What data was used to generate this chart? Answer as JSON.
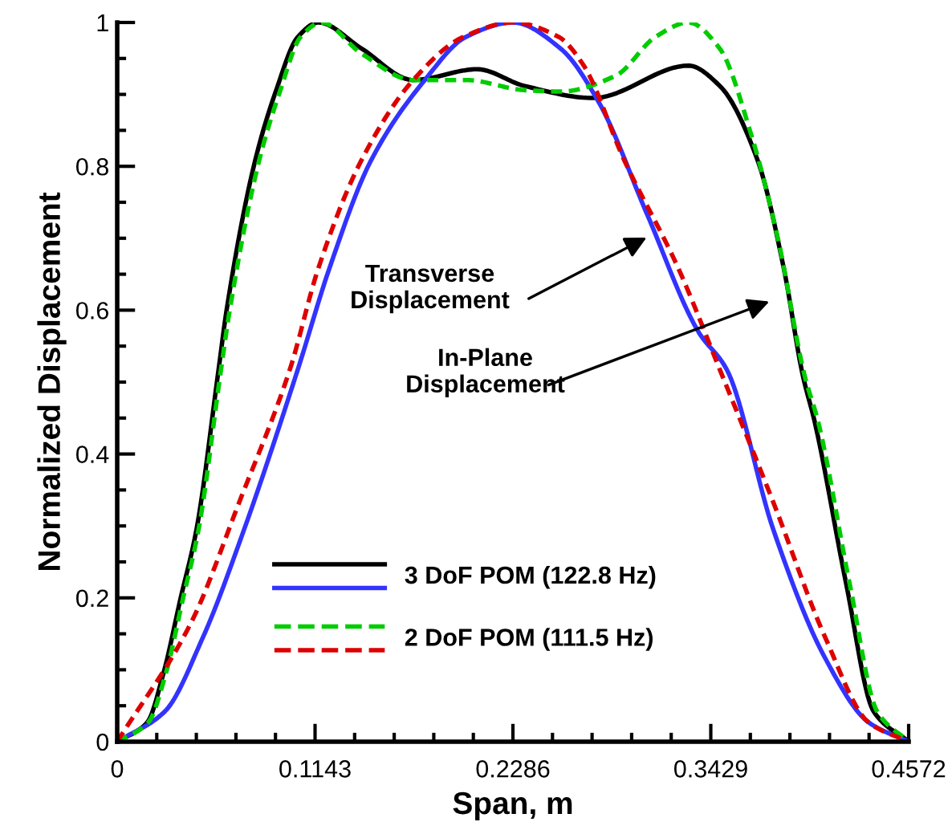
{
  "chart_data": {
    "type": "line",
    "xlabel": "Span, m",
    "ylabel": "Normalized Displacement",
    "xlim": [
      0,
      0.4572
    ],
    "ylim": [
      0,
      1
    ],
    "xticks": [
      0,
      0.1143,
      0.2286,
      0.3429,
      0.4572
    ],
    "yticks": [
      0,
      0.2,
      0.4,
      0.6,
      0.8,
      1
    ],
    "grid": false,
    "legend": "bottom",
    "marker": "none",
    "series": [
      {
        "name": "3 DoF POM (122.8 Hz)",
        "color": "#000000",
        "line_style": "solid",
        "x": [
          0,
          0.0174,
          0.0266,
          0.0366,
          0.0458,
          0.0586,
          0.0632,
          0.0797,
          0.0916,
          0.1044,
          0.1163,
          0.141,
          0.171,
          0.208,
          0.235,
          0.275,
          0.33,
          0.348,
          0.37,
          0.385,
          0.396,
          0.403,
          0.421,
          0.437,
          0.4572
        ],
        "values": [
          0,
          0.027,
          0.094,
          0.199,
          0.295,
          0.518,
          0.6,
          0.808,
          0.904,
          0.98,
          1,
          0.964,
          0.92,
          0.935,
          0.912,
          0.895,
          0.94,
          0.912,
          0.808,
          0.659,
          0.51,
          0.444,
          0.221,
          0.042,
          0
        ]
      },
      {
        "color": "#3333ff",
        "line_style": "solid",
        "x": [
          0,
          0.0275,
          0.0495,
          0.0733,
          0.1044,
          0.1227,
          0.1466,
          0.1777,
          0.2015,
          0.2286,
          0.256,
          0.278,
          0.306,
          0.336,
          0.352,
          0.379,
          0.409,
          0.434,
          0.4572
        ],
        "values": [
          0,
          0.042,
          0.145,
          0.295,
          0.518,
          0.659,
          0.808,
          0.92,
          0.98,
          1,
          0.964,
          0.89,
          0.734,
          0.569,
          0.518,
          0.295,
          0.116,
          0.027,
          0
        ]
      },
      {
        "name": "2 DoF POM (111.5 Hz)",
        "color": "#00cc00",
        "line_style": "dashed",
        "x": [
          0,
          0.018,
          0.028,
          0.038,
          0.047,
          0.06,
          0.065,
          0.082,
          0.094,
          0.106,
          0.118,
          0.141,
          0.171,
          0.2015,
          0.235,
          0.256,
          0.288,
          0.311,
          0.33,
          0.348,
          0.366,
          0.382,
          0.397,
          0.405,
          0.423,
          0.439,
          0.4572
        ],
        "values": [
          0,
          0.027,
          0.094,
          0.199,
          0.295,
          0.518,
          0.6,
          0.808,
          0.904,
          0.98,
          1,
          0.957,
          0.92,
          0.92,
          0.906,
          0.904,
          0.926,
          0.98,
          1,
          0.964,
          0.846,
          0.696,
          0.51,
          0.444,
          0.221,
          0.042,
          0
        ]
      },
      {
        "color": "#dd0000",
        "line_style": "dashed",
        "x": [
          0,
          0.043,
          0.0705,
          0.0998,
          0.1163,
          0.141,
          0.171,
          0.2,
          0.2286,
          0.255,
          0.269,
          0.293,
          0.324,
          0.348,
          0.379,
          0.409,
          0.434,
          0.4572
        ],
        "values": [
          0,
          0.167,
          0.333,
          0.518,
          0.659,
          0.808,
          0.92,
          0.98,
          1,
          0.98,
          0.942,
          0.808,
          0.659,
          0.518,
          0.333,
          0.145,
          0.027,
          0
        ]
      }
    ],
    "annotations": [
      "Transverse\nDisplacement",
      "In-Plane\nDisplacement"
    ]
  }
}
